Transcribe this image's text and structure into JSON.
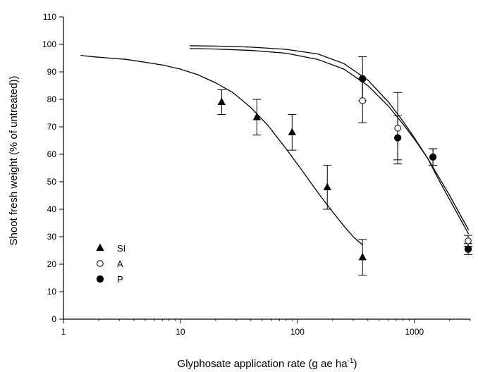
{
  "chart_data": {
    "type": "scatter",
    "xlabel": "Glyphosate application rate (g ae ha",
    "xlabel_sup": "-1",
    "xlabel_end": ")",
    "ylabel": "Shoot fresh weight (% of untreated))",
    "x_scale": "log",
    "xlim": [
      1,
      3000
    ],
    "ylim": [
      0,
      110
    ],
    "x_ticks": [
      {
        "value": 1,
        "label": "1"
      },
      {
        "value": 10,
        "label": "10"
      },
      {
        "value": 100,
        "label": "100"
      },
      {
        "value": 1000,
        "label": "1000"
      }
    ],
    "y_ticks": [
      {
        "value": 0,
        "label": "0"
      },
      {
        "value": 10,
        "label": "10"
      },
      {
        "value": 20,
        "label": "20"
      },
      {
        "value": 30,
        "label": "30"
      },
      {
        "value": 40,
        "label": "40"
      },
      {
        "value": 50,
        "label": "50"
      },
      {
        "value": 60,
        "label": "60"
      },
      {
        "value": 70,
        "label": "70"
      },
      {
        "value": 80,
        "label": "80"
      },
      {
        "value": 90,
        "label": "90"
      },
      {
        "value": 100,
        "label": "100"
      },
      {
        "value": 110,
        "label": "110"
      }
    ],
    "grid": false,
    "legend_position": "bottom-left",
    "series": [
      {
        "name": "SI",
        "marker": "triangle-filled",
        "points": [
          {
            "x": 22.5,
            "y": 79,
            "err": 4.5
          },
          {
            "x": 45,
            "y": 73.5,
            "err": 6.5
          },
          {
            "x": 90,
            "y": 68,
            "err": 6.5
          },
          {
            "x": 180,
            "y": 48,
            "err": 8
          },
          {
            "x": 360,
            "y": 22.5,
            "err": 6.5
          }
        ],
        "curve": {
          "x": [
            1.4,
            1.8,
            2.5,
            3.5,
            5,
            7,
            10,
            14,
            20,
            28,
            40,
            56,
            80,
            110,
            150,
            200,
            260,
            300,
            360
          ],
          "y": [
            96,
            95.5,
            95,
            94.5,
            93.5,
            92.5,
            91,
            89,
            86,
            82.5,
            77,
            70.5,
            62,
            54,
            46,
            39,
            33,
            30,
            27
          ]
        }
      },
      {
        "name": "A",
        "marker": "circle-open",
        "points": [
          {
            "x": 360,
            "y": 79.5,
            "err": 8
          },
          {
            "x": 720,
            "y": 69.5,
            "err": 13
          },
          {
            "x": 1440,
            "y": 59,
            "err": 3
          },
          {
            "x": 2880,
            "y": 28.5,
            "err": 2
          }
        ],
        "curve": {
          "x": [
            12,
            20,
            40,
            80,
            150,
            250,
            400,
            600,
            800,
            1000,
            1300,
            1600,
            2000,
            2500,
            2900
          ],
          "y": [
            98.5,
            98.3,
            97.8,
            96.8,
            94.5,
            91,
            85,
            77.5,
            71,
            65.5,
            58.5,
            52,
            45,
            37.5,
            32.5
          ]
        }
      },
      {
        "name": "P",
        "marker": "circle-filled",
        "points": [
          {
            "x": 360,
            "y": 87.5,
            "err": 8
          },
          {
            "x": 720,
            "y": 66,
            "err": 8
          },
          {
            "x": 1440,
            "y": 59,
            "err": 3
          },
          {
            "x": 2880,
            "y": 25.5,
            "err": 2
          }
        ],
        "curve": {
          "x": [
            12,
            20,
            40,
            80,
            150,
            250,
            400,
            600,
            800,
            1000,
            1300,
            1600,
            2000,
            2500,
            2900
          ],
          "y": [
            99.5,
            99.4,
            99,
            98.2,
            96.5,
            93,
            87,
            79,
            72,
            66,
            58.5,
            51,
            43.5,
            36,
            31
          ]
        }
      }
    ]
  }
}
